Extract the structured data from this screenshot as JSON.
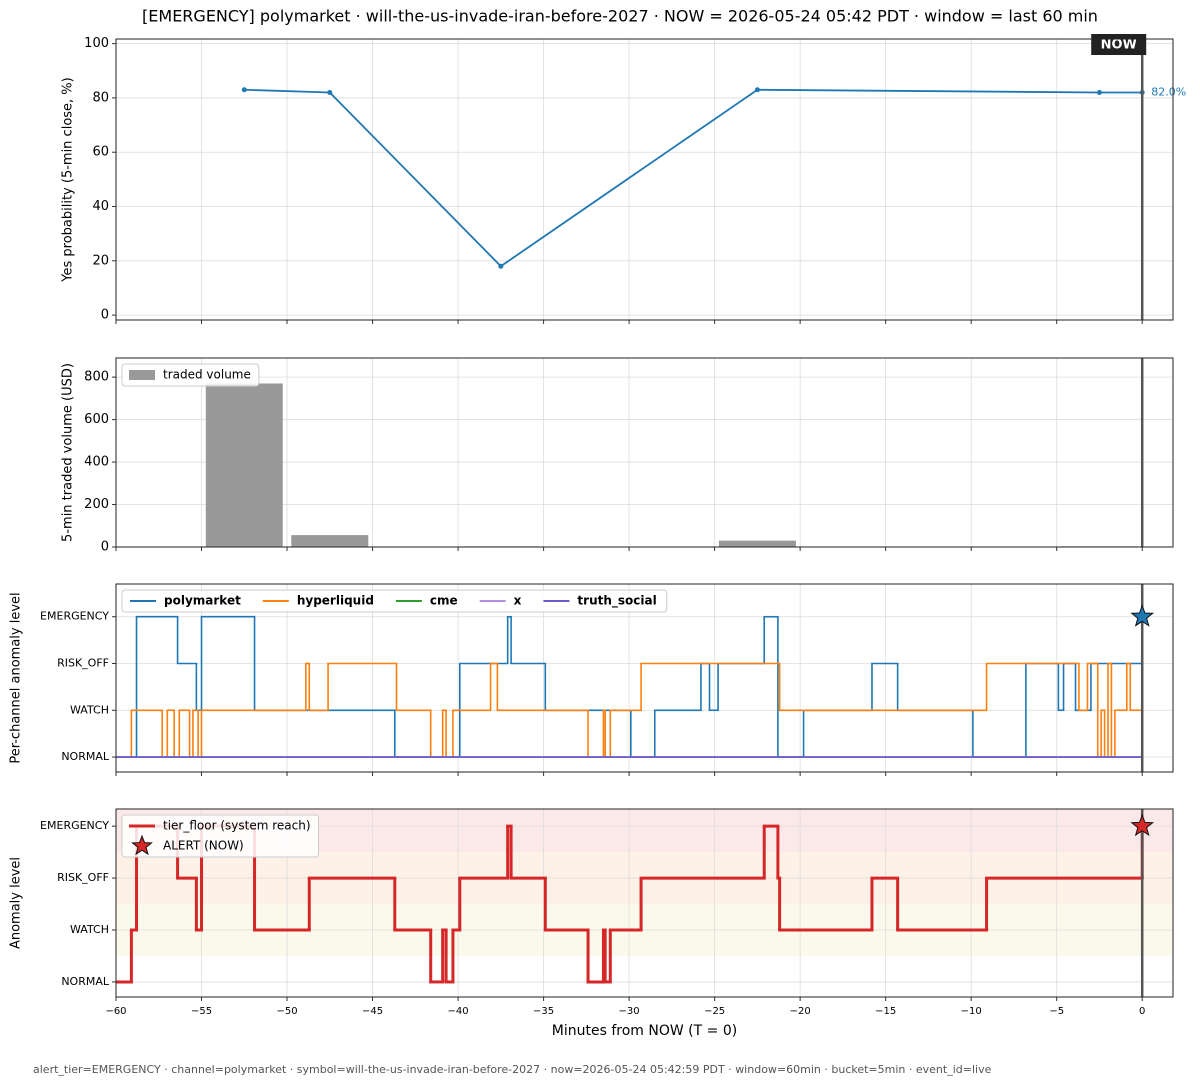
{
  "title": "[EMERGENCY] polymarket · will-the-us-invade-iran-before-2027  ·  NOW = 2026-05-24 05:42 PDT  ·  window = last 60 min",
  "footer": "alert_tier=EMERGENCY  ·  channel=polymarket  ·  symbol=will-the-us-invade-iran-before-2027  ·  now=2026-05-24 05:42:59 PDT  ·  window=60min  ·  bucket=5min  ·  event_id=live",
  "chart_data": [
    {
      "type": "line",
      "ylabel": "Yes probability (5-min close, %)",
      "xlim": [
        -60,
        1.8
      ],
      "xticks": [
        -60,
        -55,
        -50,
        -45,
        -40,
        -35,
        -30,
        -25,
        -20,
        -15,
        -10,
        -5,
        0
      ],
      "ylim": [
        -1.8,
        101.7
      ],
      "yticks": [
        0,
        20,
        40,
        60,
        80,
        100
      ],
      "grid": true,
      "vline": 0,
      "now_label": "NOW",
      "series": [
        {
          "name": "polymarket",
          "color": "#1f77b4",
          "x": [
            -52.5,
            -47.5,
            -37.5,
            -22.5,
            -2.5,
            0
          ],
          "values": [
            83,
            82,
            18,
            83,
            82,
            82
          ],
          "value_labels": [
            null,
            null,
            null,
            null,
            null,
            "82.0%"
          ]
        }
      ]
    },
    {
      "type": "bar",
      "ylabel": "5-min traded volume (USD)",
      "xlim": [
        -60,
        1.8
      ],
      "xticks": [
        -60,
        -55,
        -50,
        -45,
        -40,
        -35,
        -30,
        -25,
        -20,
        -15,
        -10,
        -5,
        0
      ],
      "ylim": [
        0,
        890
      ],
      "yticks": [
        0,
        200,
        400,
        600,
        800
      ],
      "grid": true,
      "vline": 0,
      "legend": "upper left",
      "bar_width": 4.5,
      "series": [
        {
          "name": "traded volume",
          "color": "#999999",
          "x": [
            -52.5,
            -47.5,
            -37.5,
            -22.5,
            -2.5
          ],
          "values": [
            770,
            56,
            3,
            30,
            3
          ]
        }
      ]
    },
    {
      "type": "step",
      "ylabel": "Per-channel anomaly level",
      "xlim": [
        -60,
        1.8
      ],
      "xticks": [
        -60,
        -55,
        -50,
        -45,
        -40,
        -35,
        -30,
        -25,
        -20,
        -15,
        -10,
        -5,
        0
      ],
      "ylim": [
        -0.32,
        3.7
      ],
      "yticks": [
        {
          "value": 0,
          "label": "NORMAL"
        },
        {
          "value": 1,
          "label": "WATCH"
        },
        {
          "value": 2,
          "label": "RISK_OFF"
        },
        {
          "value": 3,
          "label": "EMERGENCY"
        }
      ],
      "grid": true,
      "vline": 0,
      "legend": "upper left",
      "line_width": 1.6,
      "series": [
        {
          "name": "polymarket",
          "color": "#1f77b4",
          "x": [
            -60,
            -58.8,
            -56.4,
            -55.3,
            -55.0,
            -51.9,
            -43.7,
            -39.9,
            -37.1,
            -36.9,
            -34.9,
            -29.9,
            -28.5,
            -25.8,
            -25.3,
            -24.8,
            -22.1,
            -21.3,
            -19.8,
            -15.8,
            -14.3,
            -9.9,
            -6.8,
            -4.9,
            -4.6,
            -3.9,
            -3.0,
            0
          ],
          "values": [
            0,
            3,
            2,
            1,
            3,
            1,
            0,
            2,
            3,
            2,
            1,
            0,
            1,
            2,
            1,
            2,
            3,
            0,
            1,
            2,
            1,
            0,
            2,
            1,
            2,
            1,
            2,
            3
          ]
        },
        {
          "name": "hyperliquid",
          "color": "#ff7f0e",
          "x": [
            -60,
            -59.1,
            -57.3,
            -57.0,
            -56.6,
            -56.3,
            -55.7,
            -55.5,
            -55.2,
            -55.0,
            -48.9,
            -48.7,
            -47.6,
            -43.6,
            -41.6,
            -40.9,
            -40.7,
            -40.3,
            -38.1,
            -37.7,
            -32.4,
            -31.5,
            -31.4,
            -31.1,
            -29.3,
            -21.2,
            -9.1,
            -3.7,
            -3.2,
            -2.6,
            -2.4,
            -2.2,
            -2.0,
            -1.8,
            -1.6,
            -0.9,
            -0.7,
            0
          ],
          "values": [
            0,
            1,
            0,
            1,
            0,
            1,
            0,
            1,
            0,
            1,
            2,
            1,
            2,
            1,
            0,
            1,
            0,
            1,
            2,
            1,
            0,
            1,
            0,
            1,
            2,
            1,
            2,
            1,
            2,
            0,
            1,
            0,
            2,
            0,
            1,
            2,
            1,
            1
          ]
        },
        {
          "name": "cme",
          "color": "#2ca02c",
          "x": [
            -60,
            0
          ],
          "values": [
            0,
            0
          ]
        },
        {
          "name": "x",
          "color": "#b48ee0",
          "x": [
            -60,
            0
          ],
          "values": [
            0,
            0
          ]
        },
        {
          "name": "truth_social",
          "color": "#6a5acd",
          "x": [
            -60,
            0
          ],
          "values": [
            0,
            0
          ]
        }
      ],
      "marker": {
        "x": 0,
        "value": 3,
        "color": "#1f77b4"
      }
    },
    {
      "type": "step",
      "ylabel": "Anomaly level",
      "xlabel": "Minutes from NOW (T = 0)",
      "xlim": [
        -60,
        1.8
      ],
      "xticks": [
        {
          "value": -60,
          "label": "−60"
        },
        {
          "value": -55,
          "label": "−55"
        },
        {
          "value": -50,
          "label": "−50"
        },
        {
          "value": -45,
          "label": "−45"
        },
        {
          "value": -40,
          "label": "−40"
        },
        {
          "value": -35,
          "label": "−35"
        },
        {
          "value": -30,
          "label": "−30"
        },
        {
          "value": -25,
          "label": "−25"
        },
        {
          "value": -20,
          "label": "−20"
        },
        {
          "value": -15,
          "label": "−15"
        },
        {
          "value": -10,
          "label": "−10"
        },
        {
          "value": -5,
          "label": "−5"
        },
        0
      ],
      "ylim": [
        -0.29,
        3.33
      ],
      "yticks": [
        {
          "value": 0,
          "label": "NORMAL"
        },
        {
          "value": 1,
          "label": "WATCH"
        },
        {
          "value": 2,
          "label": "RISK_OFF"
        },
        {
          "value": 3,
          "label": "EMERGENCY"
        }
      ],
      "grid": true,
      "vline": 0,
      "legend": "upper left",
      "line_width": 3,
      "bands": [
        {
          "from": 0.5,
          "to": 1.5,
          "color": "#fbf9ec"
        },
        {
          "from": 1.5,
          "to": 2.5,
          "color": "#fdf1e8"
        },
        {
          "from": 2.5,
          "to": 3.5,
          "color": "#fbe9e9"
        }
      ],
      "series": [
        {
          "name": "tier_floor (system reach)",
          "color": "#d62728",
          "x": [
            -60,
            -59.1,
            -58.8,
            -56.4,
            -55.3,
            -55.0,
            -51.9,
            -48.7,
            -43.7,
            -41.6,
            -40.9,
            -40.7,
            -40.3,
            -39.9,
            -37.1,
            -36.9,
            -34.9,
            -32.4,
            -31.5,
            -31.4,
            -31.1,
            -29.3,
            -22.1,
            -21.3,
            -21.2,
            -15.8,
            -14.3,
            -9.1,
            0
          ],
          "values": [
            0,
            1,
            3,
            2,
            1,
            3,
            1,
            2,
            1,
            0,
            1,
            0,
            1,
            2,
            3,
            2,
            1,
            0,
            1,
            0,
            1,
            2,
            3,
            2,
            1,
            2,
            1,
            2,
            3
          ]
        }
      ],
      "marker": {
        "name": "ALERT (NOW)",
        "x": 0,
        "value": 3,
        "color": "#d62728"
      }
    }
  ]
}
